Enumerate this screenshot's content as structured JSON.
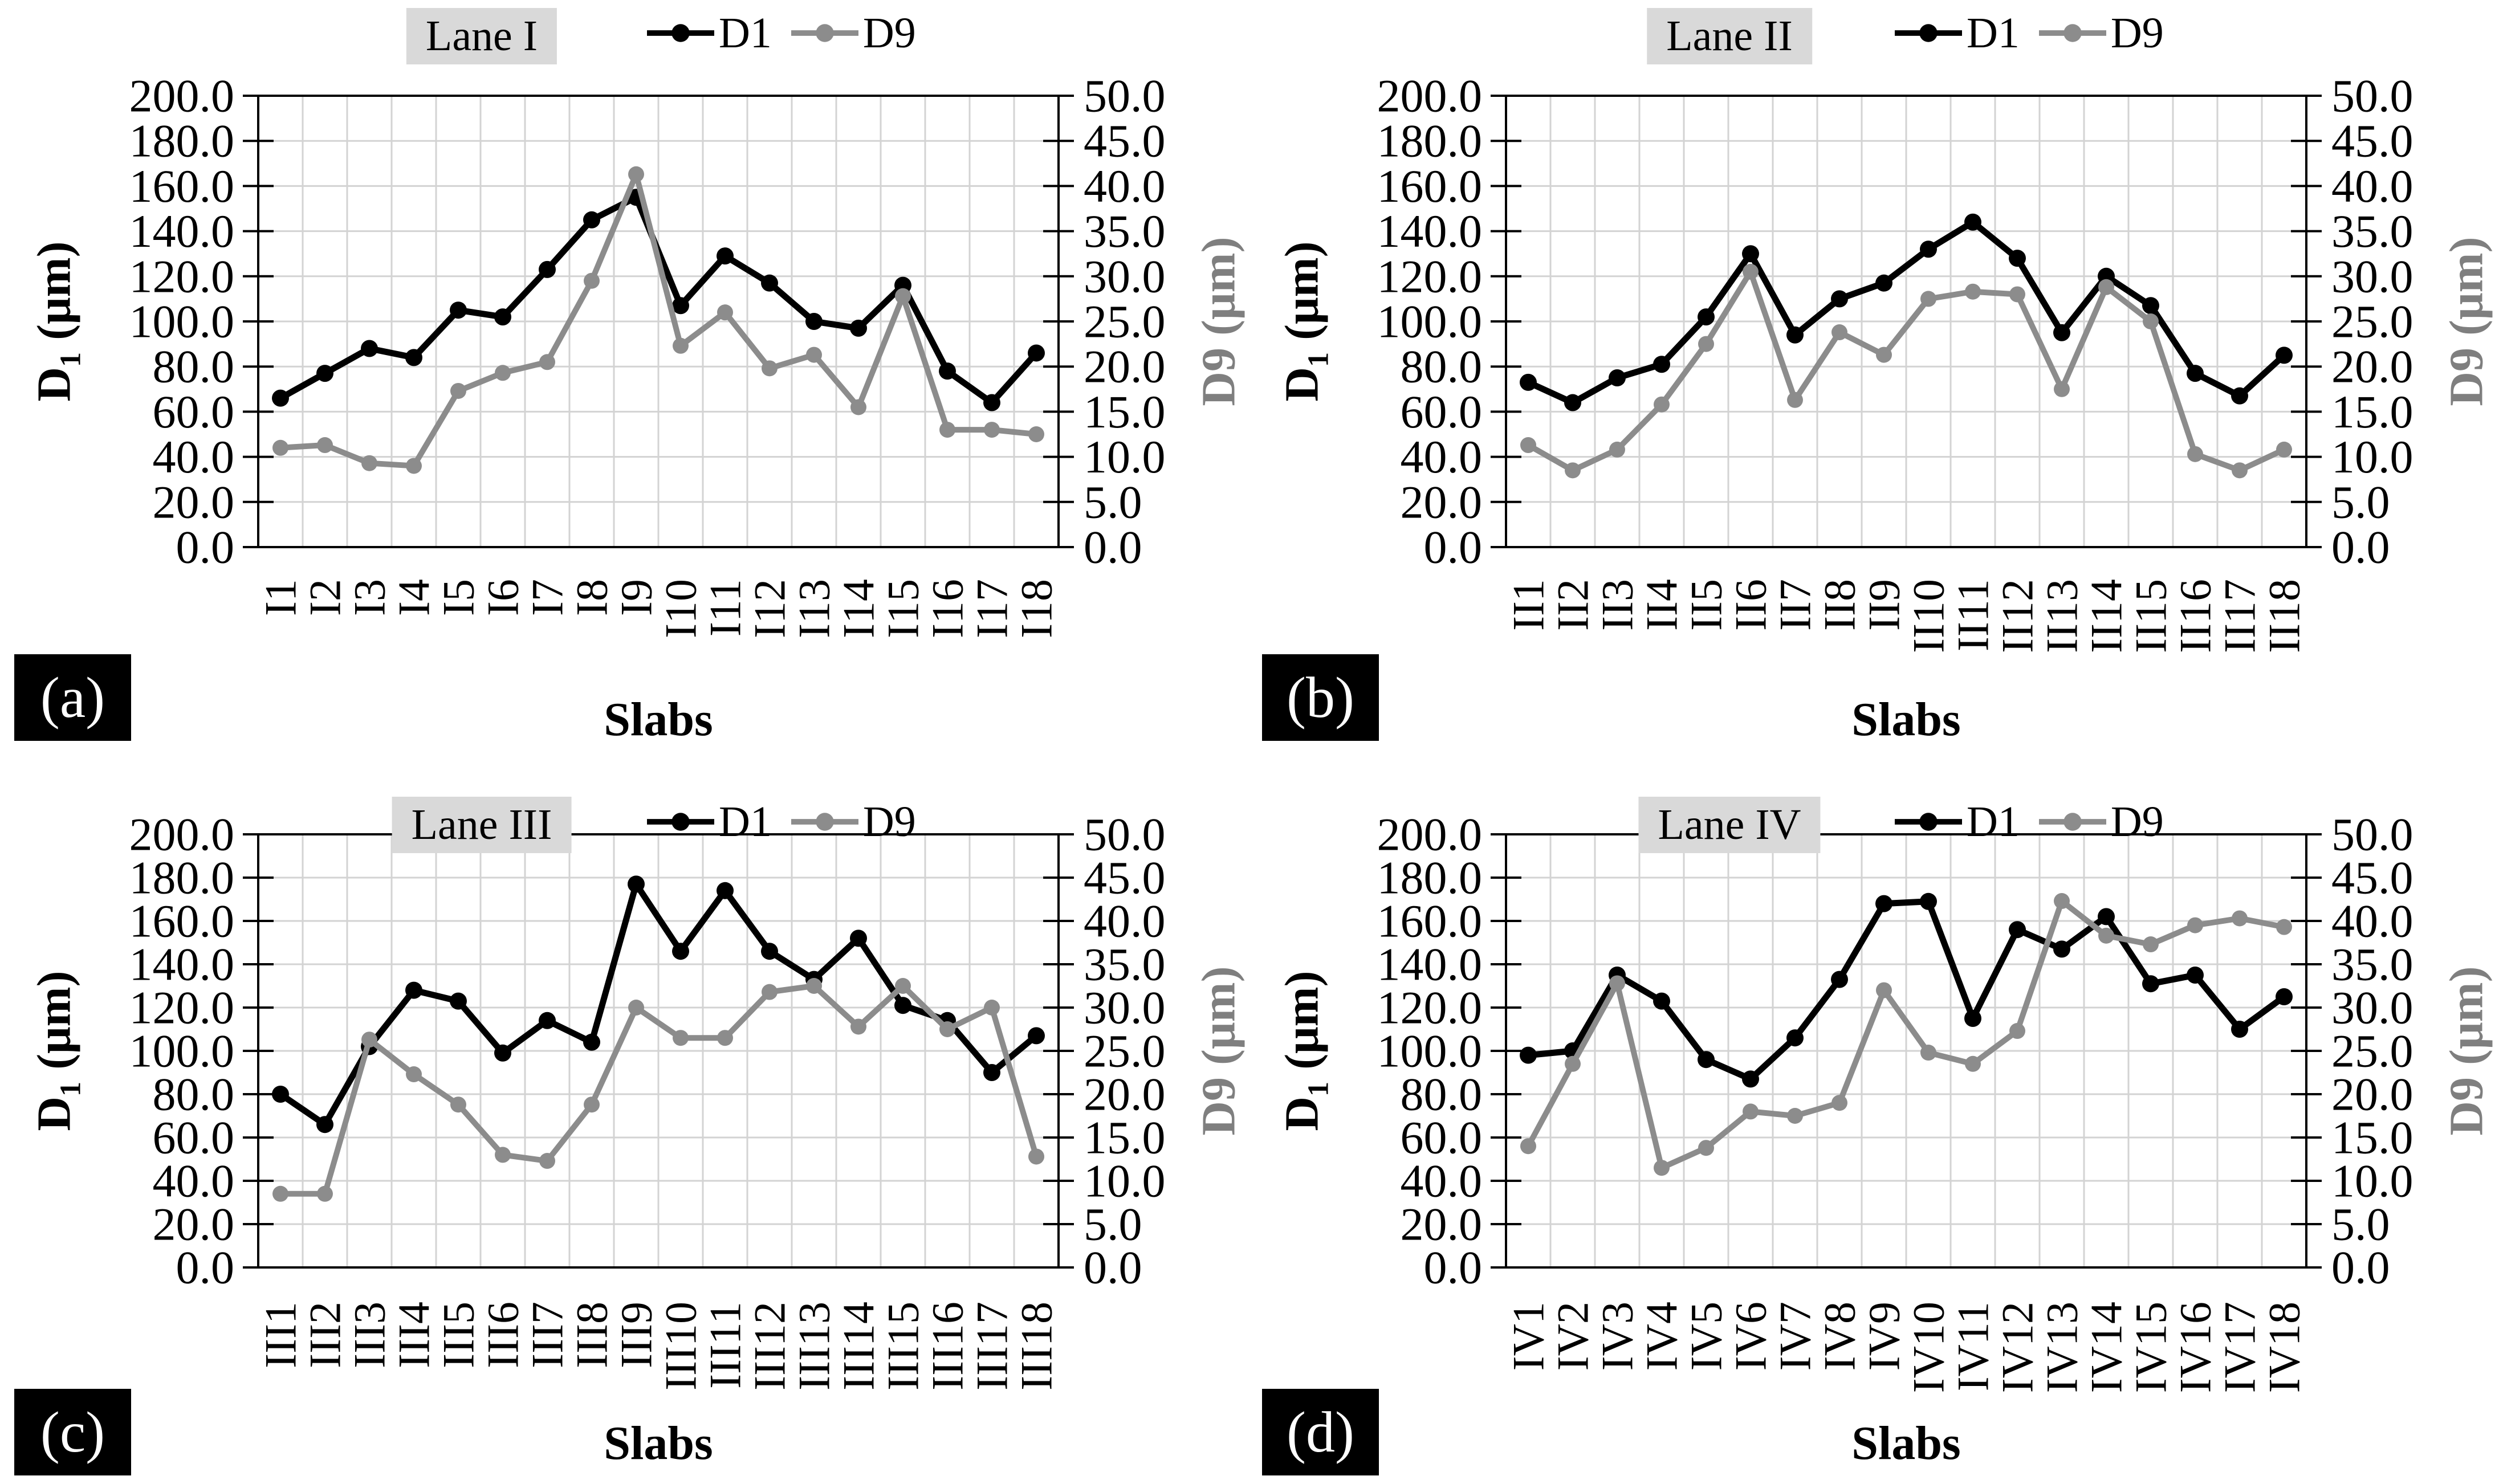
{
  "axis_titles": {
    "left_base": "D",
    "left_sub": "1",
    "left_unit": " (μm)",
    "right": "D9 (μm)"
  },
  "colors": {
    "d1": "#000000",
    "d9": "#8c8c8c",
    "grid": "#d3d3d3",
    "plot_border": "#000000",
    "title_box_bg": "#d9d9d9",
    "right_axis_title": "#7f7f7f",
    "panel_tag_bg": "#000000",
    "panel_tag_text": "#ffffff"
  },
  "chart_data": [
    {
      "type": "line",
      "panel_tag": "(a)",
      "title": "Lane I",
      "xlabel": "Slabs",
      "ylabel_left": "D1 (μm)",
      "ylabel_right": "D9 (μm)",
      "ylim_left": [
        0,
        200
      ],
      "ytick_step_left": 20,
      "ylim_right": [
        0,
        50
      ],
      "ytick_step_right": 5,
      "grid": true,
      "legend_position": "top",
      "categories": [
        "I1",
        "I2",
        "I3",
        "I4",
        "I5",
        "I6",
        "I7",
        "I8",
        "I9",
        "I10",
        "I11",
        "I12",
        "I13",
        "I14",
        "I15",
        "I16",
        "I17",
        "I18"
      ],
      "series": [
        {
          "name": "D1",
          "axis": "left",
          "color": "#000000",
          "values": [
            66,
            77,
            88,
            84,
            105,
            102,
            123,
            145,
            155,
            107,
            129,
            117,
            100,
            97,
            116,
            78,
            64,
            86
          ]
        },
        {
          "name": "D9",
          "axis": "right",
          "color": "#8c8c8c",
          "values": [
            11.0,
            11.3,
            9.3,
            9.0,
            17.3,
            19.3,
            20.5,
            29.5,
            41.3,
            22.3,
            26.0,
            19.8,
            21.3,
            15.5,
            27.8,
            13.0,
            13.0,
            12.5
          ]
        }
      ]
    },
    {
      "type": "line",
      "panel_tag": "(b)",
      "title": "Lane II",
      "xlabel": "Slabs",
      "ylabel_left": "D1 (μm)",
      "ylabel_right": "D9 (μm)",
      "ylim_left": [
        0,
        200
      ],
      "ytick_step_left": 20,
      "ylim_right": [
        0,
        50
      ],
      "ytick_step_right": 5,
      "grid": true,
      "legend_position": "top",
      "categories": [
        "II1",
        "II2",
        "II3",
        "II4",
        "II5",
        "II6",
        "II7",
        "II8",
        "II9",
        "II10",
        "II11",
        "II12",
        "II13",
        "II14",
        "II15",
        "II16",
        "II17",
        "II18"
      ],
      "series": [
        {
          "name": "D1",
          "axis": "left",
          "color": "#000000",
          "values": [
            73,
            64,
            75,
            81,
            102,
            130,
            94,
            110,
            117,
            132,
            144,
            128,
            95,
            120,
            107,
            77,
            67,
            85
          ]
        },
        {
          "name": "D9",
          "axis": "right",
          "color": "#8c8c8c",
          "values": [
            11.3,
            8.5,
            10.8,
            15.8,
            22.5,
            30.5,
            16.3,
            23.8,
            21.3,
            27.5,
            28.3,
            28.0,
            17.5,
            28.8,
            25.0,
            10.3,
            8.5,
            10.8
          ]
        }
      ]
    },
    {
      "type": "line",
      "panel_tag": "(c)",
      "title": "Lane III",
      "xlabel": "Slabs",
      "ylabel_left": "D1 (μm)",
      "ylabel_right": "D9 (μm)",
      "ylim_left": [
        0,
        200
      ],
      "ytick_step_left": 20,
      "ylim_right": [
        0,
        50
      ],
      "ytick_step_right": 5,
      "grid": true,
      "legend_position": "top",
      "categories": [
        "III1",
        "III2",
        "III3",
        "III4",
        "III5",
        "III6",
        "III7",
        "III8",
        "III9",
        "III10",
        "III11",
        "III12",
        "III13",
        "III14",
        "III15",
        "III16",
        "III17",
        "III18"
      ],
      "series": [
        {
          "name": "D1",
          "axis": "left",
          "color": "#000000",
          "values": [
            80,
            66,
            102,
            128,
            123,
            99,
            114,
            104,
            177,
            146,
            174,
            146,
            133,
            152,
            121,
            114,
            90,
            107
          ]
        },
        {
          "name": "D9",
          "axis": "right",
          "color": "#8c8c8c",
          "values": [
            8.5,
            8.5,
            26.3,
            22.3,
            18.8,
            13.0,
            12.3,
            18.8,
            30.0,
            26.5,
            26.5,
            31.8,
            32.5,
            27.8,
            32.5,
            27.5,
            30.0,
            12.8
          ]
        }
      ]
    },
    {
      "type": "line",
      "panel_tag": "(d)",
      "title": "Lane IV",
      "xlabel": "Slabs",
      "ylabel_left": "D1 (μm)",
      "ylabel_right": "D9 (μm)",
      "ylim_left": [
        0,
        200
      ],
      "ytick_step_left": 20,
      "ylim_right": [
        0,
        50
      ],
      "ytick_step_right": 5,
      "grid": true,
      "legend_position": "top",
      "categories": [
        "IV1",
        "IV2",
        "IV3",
        "IV4",
        "IV5",
        "IV6",
        "IV7",
        "IV8",
        "IV9",
        "IV10",
        "IV11",
        "IV12",
        "IV13",
        "IV14",
        "IV15",
        "IV16",
        "IV17",
        "IV18"
      ],
      "series": [
        {
          "name": "D1",
          "axis": "left",
          "color": "#000000",
          "values": [
            98,
            100,
            135,
            123,
            96,
            87,
            106,
            133,
            168,
            169,
            115,
            156,
            147,
            162,
            131,
            135,
            110,
            125
          ]
        },
        {
          "name": "D9",
          "axis": "right",
          "color": "#8c8c8c",
          "values": [
            14.0,
            23.5,
            32.8,
            11.5,
            13.8,
            18.0,
            17.5,
            19.0,
            32.0,
            24.8,
            23.5,
            27.3,
            42.3,
            38.3,
            37.3,
            39.5,
            40.3,
            39.3
          ]
        }
      ]
    }
  ]
}
